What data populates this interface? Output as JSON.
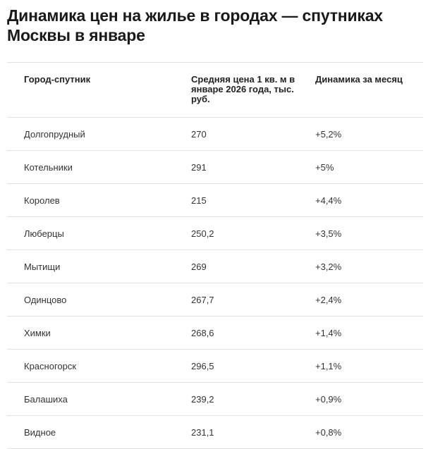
{
  "title": "Динамика цен на жилье в городах — спутниках Москвы в январе",
  "table": {
    "headers": [
      "Город-спутник",
      "Средняя цена 1 кв. м в январе 2026 года, тыс. руб.",
      "Динамика за месяц"
    ],
    "rows": [
      [
        "Долгопрудный",
        "270",
        "+5,2%"
      ],
      [
        "Котельники",
        "291",
        "+5%"
      ],
      [
        "Королев",
        "215",
        "+4,4%"
      ],
      [
        "Люберцы",
        "250,2",
        "+3,5%"
      ],
      [
        "Мытищи",
        "269",
        "+3,2%"
      ],
      [
        "Одинцово",
        "267,7",
        "+2,4%"
      ],
      [
        "Химки",
        "268,6",
        "+1,4%"
      ],
      [
        "Красногорск",
        "296,5",
        "+1,1%"
      ],
      [
        "Балашиха",
        "239,2",
        "+0,9%"
      ],
      [
        "Видное",
        "231,1",
        "+0,8%"
      ]
    ]
  }
}
